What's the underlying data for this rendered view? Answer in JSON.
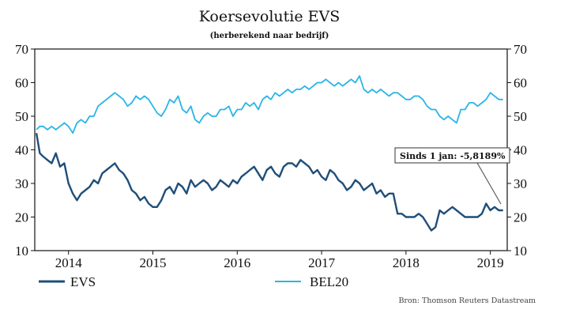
{
  "colors": {
    "evs": "#1f4e79",
    "bel20": "#29b5e8",
    "axis": "#111111"
  },
  "chart_data": {
    "type": "line",
    "title": "Koersevolutie EVS",
    "subtitle": "(herberekend naar bedrijf)",
    "ylim": [
      10,
      70
    ],
    "y_ticks": [
      "10",
      "20",
      "30",
      "40",
      "50",
      "60",
      "70"
    ],
    "y_right_ticks": [
      "10",
      "20",
      "30",
      "40",
      "50",
      "60",
      "70"
    ],
    "xlim": [
      2013.6,
      2019.2
    ],
    "x_tick_labels": [
      {
        "x": 2014.0,
        "label": "2014"
      },
      {
        "x": 2015.0,
        "label": "2015"
      },
      {
        "x": 2016.0,
        "label": "2016"
      },
      {
        "x": 2017.0,
        "label": "2017"
      },
      {
        "x": 2018.0,
        "label": "2018"
      },
      {
        "x": 2019.0,
        "label": "2019"
      }
    ],
    "series": [
      {
        "name": "EVS",
        "color": "#1f4e79",
        "x": [
          2013.62,
          2013.66,
          2013.7,
          2013.75,
          2013.8,
          2013.85,
          2013.9,
          2013.95,
          2014.0,
          2014.05,
          2014.1,
          2014.15,
          2014.2,
          2014.25,
          2014.3,
          2014.35,
          2014.4,
          2014.45,
          2014.5,
          2014.55,
          2014.6,
          2014.65,
          2014.7,
          2014.75,
          2014.8,
          2014.85,
          2014.9,
          2014.95,
          2015.0,
          2015.05,
          2015.1,
          2015.15,
          2015.2,
          2015.25,
          2015.3,
          2015.35,
          2015.4,
          2015.45,
          2015.5,
          2015.55,
          2015.6,
          2015.65,
          2015.7,
          2015.75,
          2015.8,
          2015.85,
          2015.9,
          2015.95,
          2016.0,
          2016.05,
          2016.1,
          2016.15,
          2016.2,
          2016.25,
          2016.3,
          2016.35,
          2016.4,
          2016.45,
          2016.5,
          2016.55,
          2016.6,
          2016.65,
          2016.7,
          2016.75,
          2016.8,
          2016.85,
          2016.9,
          2016.95,
          2017.0,
          2017.05,
          2017.1,
          2017.15,
          2017.2,
          2017.25,
          2017.3,
          2017.35,
          2017.4,
          2017.45,
          2017.5,
          2017.55,
          2017.6,
          2017.65,
          2017.7,
          2017.75,
          2017.8,
          2017.85,
          2017.9,
          2017.95,
          2018.0,
          2018.05,
          2018.1,
          2018.15,
          2018.2,
          2018.25,
          2018.3,
          2018.35,
          2018.4,
          2018.45,
          2018.5,
          2018.55,
          2018.6,
          2018.65,
          2018.7,
          2018.75,
          2018.8,
          2018.85,
          2018.9,
          2018.95,
          2019.0,
          2019.05,
          2019.1,
          2019.15
        ],
        "values": [
          45,
          39,
          38,
          37,
          36,
          39,
          35,
          36,
          30,
          27,
          25,
          27,
          28,
          29,
          31,
          30,
          33,
          34,
          35,
          36,
          34,
          33,
          31,
          28,
          27,
          25,
          26,
          24,
          23,
          23,
          25,
          28,
          29,
          27,
          30,
          29,
          27,
          31,
          29,
          30,
          31,
          30,
          28,
          29,
          31,
          30,
          29,
          31,
          30,
          32,
          33,
          34,
          35,
          33,
          31,
          34,
          35,
          33,
          32,
          35,
          36,
          36,
          35,
          37,
          36,
          35,
          33,
          34,
          32,
          31,
          34,
          33,
          31,
          30,
          28,
          29,
          31,
          30,
          28,
          29,
          30,
          27,
          28,
          26,
          27,
          27,
          21,
          21,
          20,
          20,
          20,
          21,
          20,
          18,
          16,
          17,
          22,
          21,
          22,
          23,
          22,
          21,
          20,
          20,
          20,
          20,
          21,
          24,
          22,
          23,
          22,
          22
        ]
      },
      {
        "name": "BEL20",
        "color": "#29b5e8",
        "x": [
          2013.62,
          2013.66,
          2013.7,
          2013.75,
          2013.8,
          2013.85,
          2013.9,
          2013.95,
          2014.0,
          2014.05,
          2014.1,
          2014.15,
          2014.2,
          2014.25,
          2014.3,
          2014.35,
          2014.4,
          2014.45,
          2014.5,
          2014.55,
          2014.6,
          2014.65,
          2014.7,
          2014.75,
          2014.8,
          2014.85,
          2014.9,
          2014.95,
          2015.0,
          2015.05,
          2015.1,
          2015.15,
          2015.2,
          2015.25,
          2015.3,
          2015.35,
          2015.4,
          2015.45,
          2015.5,
          2015.55,
          2015.6,
          2015.65,
          2015.7,
          2015.75,
          2015.8,
          2015.85,
          2015.9,
          2015.95,
          2016.0,
          2016.05,
          2016.1,
          2016.15,
          2016.2,
          2016.25,
          2016.3,
          2016.35,
          2016.4,
          2016.45,
          2016.5,
          2016.55,
          2016.6,
          2016.65,
          2016.7,
          2016.75,
          2016.8,
          2016.85,
          2016.9,
          2016.95,
          2017.0,
          2017.05,
          2017.1,
          2017.15,
          2017.2,
          2017.25,
          2017.3,
          2017.35,
          2017.4,
          2017.45,
          2017.5,
          2017.55,
          2017.6,
          2017.65,
          2017.7,
          2017.75,
          2017.8,
          2017.85,
          2017.9,
          2017.95,
          2018.0,
          2018.05,
          2018.1,
          2018.15,
          2018.2,
          2018.25,
          2018.3,
          2018.35,
          2018.4,
          2018.45,
          2018.5,
          2018.55,
          2018.6,
          2018.65,
          2018.7,
          2018.75,
          2018.8,
          2018.85,
          2018.9,
          2018.95,
          2019.0,
          2019.05,
          2019.1,
          2019.15
        ],
        "values": [
          46,
          47,
          47,
          46,
          47,
          46,
          47,
          48,
          47,
          45,
          48,
          49,
          48,
          50,
          50,
          53,
          54,
          55,
          56,
          57,
          56,
          55,
          53,
          54,
          56,
          55,
          56,
          55,
          53,
          51,
          50,
          52,
          55,
          54,
          56,
          52,
          51,
          53,
          49,
          48,
          50,
          51,
          50,
          50,
          52,
          52,
          53,
          50,
          52,
          52,
          54,
          53,
          54,
          52,
          55,
          56,
          55,
          57,
          56,
          57,
          58,
          57,
          58,
          58,
          59,
          58,
          59,
          60,
          60,
          61,
          60,
          59,
          60,
          59,
          60,
          61,
          60,
          62,
          58,
          57,
          58,
          57,
          58,
          57,
          56,
          57,
          57,
          56,
          55,
          55,
          56,
          56,
          55,
          53,
          52,
          52,
          50,
          49,
          50,
          49,
          48,
          52,
          52,
          54,
          54,
          53,
          54,
          55,
          57,
          56,
          55,
          55
        ]
      }
    ],
    "annotation": {
      "text": "Sinds 1 jan: -5,8189%"
    },
    "legend": [
      "EVS",
      "BEL20"
    ]
  },
  "source": "Bron: Thomson Reuters Datastream"
}
